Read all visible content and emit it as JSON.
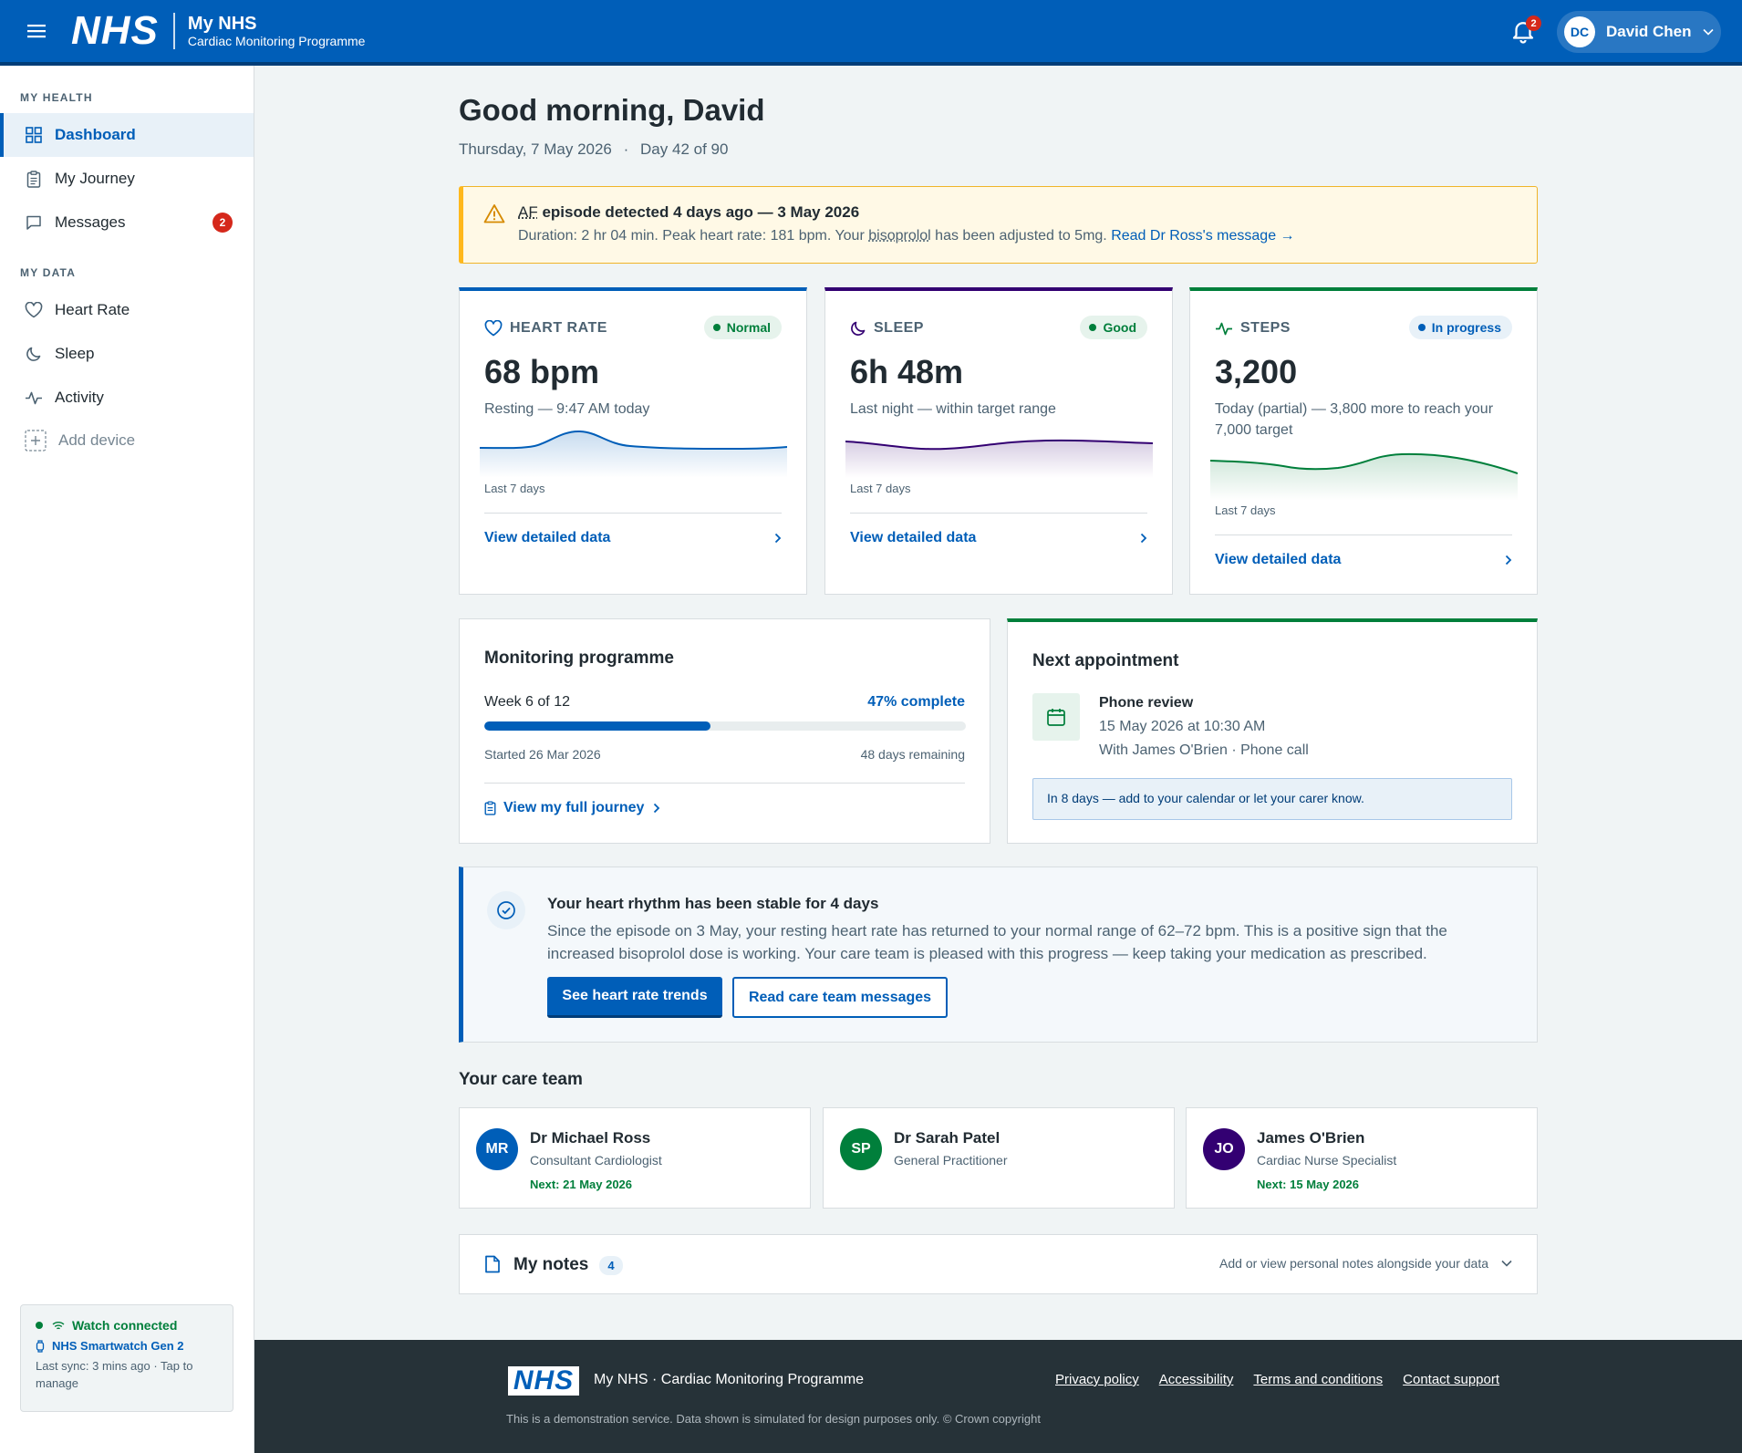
{
  "header": {
    "logo": "NHS",
    "app_name": "My NHS",
    "programme": "Cardiac Monitoring Programme",
    "notification_count": "2",
    "user": {
      "initials": "DC",
      "name": "David Chen"
    }
  },
  "sidebar": {
    "section_health": "MY HEALTH",
    "health_items": [
      {
        "label": "Dashboard",
        "icon": "dashboard-icon",
        "active": true
      },
      {
        "label": "My Journey",
        "icon": "clipboard-icon"
      },
      {
        "label": "Messages",
        "icon": "message-icon",
        "badge": "2"
      }
    ],
    "section_data": "MY DATA",
    "data_items": [
      {
        "label": "Heart Rate",
        "icon": "heart-icon"
      },
      {
        "label": "Sleep",
        "icon": "moon-icon"
      },
      {
        "label": "Activity",
        "icon": "activity-icon"
      },
      {
        "label": "Add device",
        "icon": "plus-icon"
      }
    ],
    "watch": {
      "status": "Watch connected",
      "device": "NHS Smartwatch Gen 2",
      "sync": "Last sync: 3 mins ago · Tap to manage"
    }
  },
  "main": {
    "greeting": "Good morning, David",
    "date": "Thursday, 7 May 2026",
    "day_progress": "Day 42 of 90",
    "alert": {
      "abbr": "AF",
      "title": "episode detected 4 days ago — 3 May 2026",
      "desc_before": "Duration: 2 hr 04 min. Peak heart rate: 181 bpm. Your",
      "drug": "bisoprolol",
      "desc_after": "has been adjusted to 5mg.",
      "link": "Read Dr Ross's message →"
    },
    "metrics": [
      {
        "label": "HEART RATE",
        "icon": "heart-icon",
        "status": "Normal",
        "value": "68 bpm",
        "sub": "Resting — 9:47 AM today",
        "period": "Last 7 days",
        "link": "View detailed data",
        "color": "#005eb8"
      },
      {
        "label": "SLEEP",
        "icon": "moon-icon",
        "status": "Good",
        "value": "6h 48m",
        "sub": "Last night — within target range",
        "period": "Last 7 days",
        "link": "View detailed data",
        "color": "#330072"
      },
      {
        "label": "STEPS",
        "icon": "activity-icon",
        "status": "In progress",
        "value": "3,200",
        "sub": "Today (partial) — 3,800 more to reach your 7,000 target",
        "period": "Last 7 days",
        "link": "View detailed data",
        "color": "#007f3b"
      }
    ],
    "programme": {
      "title": "Monitoring programme",
      "week": "Week 6 of 12",
      "percent_label": "47% complete",
      "percent": 47,
      "started": "Started 26 Mar 2026",
      "remaining": "48 days remaining",
      "link": "View my full journey"
    },
    "appointment": {
      "title": "Next appointment",
      "type": "Phone review",
      "datetime": "15 May 2026 at 10:30 AM",
      "with": "With James O'Brien · Phone call",
      "note": "In 8 days — add to your calendar or let your carer know."
    },
    "stable": {
      "title": "Your heart rhythm has been stable for 4 days",
      "desc": "Since the episode on 3 May, your resting heart rate has returned to your normal range of 62–72 bpm. This is a positive sign that the increased bisoprolol dose is working. Your care team is pleased with this progress — keep taking your medication as prescribed.",
      "primary_btn": "See heart rate trends",
      "secondary_btn": "Read care team messages"
    },
    "care_team_title": "Your care team",
    "care_team": [
      {
        "initials": "MR",
        "name": "Dr Michael Ross",
        "role": "Consultant Cardiologist",
        "next": "Next: 21 May 2026",
        "color": "#005eb8"
      },
      {
        "initials": "SP",
        "name": "Dr Sarah Patel",
        "role": "General Practitioner",
        "next": "",
        "color": "#007f3b"
      },
      {
        "initials": "JO",
        "name": "James O'Brien",
        "role": "Cardiac Nurse Specialist",
        "next": "Next: 15 May 2026",
        "color": "#330072"
      }
    ],
    "notes": {
      "title": "My notes",
      "count": "4",
      "hint": "Add or view personal notes alongside your data"
    }
  },
  "footer": {
    "logo": "NHS",
    "name": "My NHS · Cardiac Monitoring Programme",
    "links": [
      "Privacy policy",
      "Accessibility",
      "Terms and conditions",
      "Contact support"
    ],
    "disclaimer": "This is a demonstration service. Data shown is simulated for design purposes only. © Crown copyright"
  }
}
